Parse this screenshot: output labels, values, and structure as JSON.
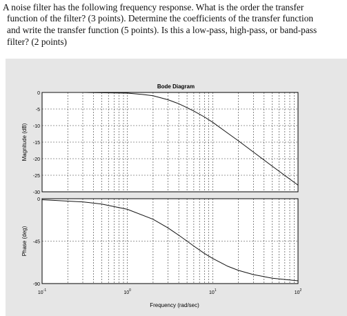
{
  "question": {
    "lines": [
      "A noise filter has the following frequency response. What is the order the transfer",
      "function of the filter? (3 points). Determine the coefficients of the transfer function",
      "and write the transfer function (5 points). Is this a low-pass, high-pass, or band-pass",
      "filter? (2 points)"
    ]
  },
  "chart_data": {
    "type": "line",
    "title": "Bode Diagram",
    "xlabel": "Frequency (rad/sec)",
    "x_scale": "log",
    "xlim": [
      0.1,
      100
    ],
    "x_ticks": [
      "10-1",
      "10^0",
      "10^1",
      "10^2"
    ],
    "panels": [
      {
        "name": "magnitude",
        "ylabel": "Magnitude (dB)",
        "ylim": [
          -30,
          0
        ],
        "y_ticks": [
          0,
          -5,
          -10,
          -15,
          -20,
          -25,
          -30
        ],
        "grid": true,
        "series": [
          {
            "x": [
              0.1,
              0.3,
              1,
              1.5,
              2,
              3,
              4,
              5,
              6,
              8,
              10,
              15,
              20,
              30,
              50,
              100
            ],
            "y": [
              0,
              0,
              -0.2,
              -0.6,
              -1,
              -2.2,
              -3.4,
              -4.6,
              -5.6,
              -7.4,
              -9,
              -12.3,
              -14.6,
              -18.0,
              -22.3,
              -28
            ]
          }
        ]
      },
      {
        "name": "phase",
        "ylabel": "Phase (deg)",
        "ylim": [
          -90,
          0
        ],
        "y_ticks": [
          0,
          -45,
          -90
        ],
        "grid": true,
        "series": [
          {
            "x": [
              0.1,
              0.3,
              0.5,
              1,
              2,
              3,
              4,
              5,
              6,
              8,
              10,
              15,
              20,
              30,
              50,
              100
            ],
            "y": [
              -1.1,
              -3.4,
              -5.7,
              -11.3,
              -21.8,
              -31,
              -38.7,
              -45,
              -50.2,
              -58,
              -63.4,
              -71.6,
              -76,
              -80.5,
              -84.3,
              -87.1
            ]
          }
        ]
      }
    ]
  }
}
